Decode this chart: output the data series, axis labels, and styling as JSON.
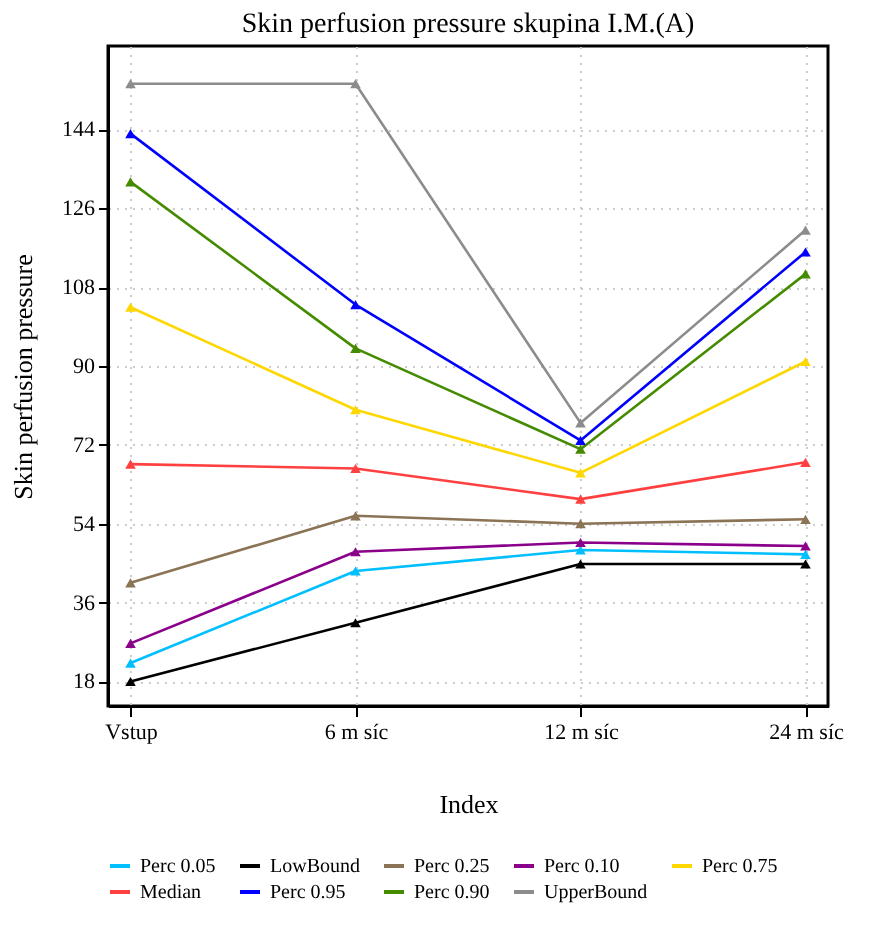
{
  "chart_data": {
    "type": "line",
    "title": "Skin perfusion pressure skupina I.M.(A)",
    "xlabel": "Index",
    "ylabel": "Skin perfusion pressure",
    "categories": [
      "Vstup",
      "6 m  síc",
      "12 m  síc",
      "24 m  síc"
    ],
    "ylim": [
      12.4,
      163
    ],
    "yticks": [
      18,
      36,
      54,
      72,
      90,
      108,
      126,
      144
    ],
    "grid": true,
    "legend": "bottom",
    "marker": "triangle",
    "line_style": "solid",
    "series": [
      {
        "name": "Perc 0.05",
        "color": "#00bfff",
        "values": [
          22.2,
          43.2,
          48,
          47
        ]
      },
      {
        "name": "LowBound",
        "color": "#000000",
        "values": [
          18,
          31.4,
          44.8,
          44.8
        ]
      },
      {
        "name": "Perc 0.25",
        "color": "#8b7355",
        "values": [
          40.5,
          55.8,
          54,
          55
        ]
      },
      {
        "name": "Perc 0.10",
        "color": "#8b008b",
        "values": [
          26.7,
          47.6,
          49.7,
          48.9
        ]
      },
      {
        "name": "Perc 0.75",
        "color": "#ffd700",
        "values": [
          103.4,
          80,
          65.6,
          91
        ]
      },
      {
        "name": "Median",
        "color": "#ff4040",
        "values": [
          67.6,
          66.6,
          59.6,
          68
        ]
      },
      {
        "name": "Perc 0.95",
        "color": "#0000ff",
        "values": [
          143,
          104,
          73,
          116
        ]
      },
      {
        "name": "Perc 0.90",
        "color": "#458b00",
        "values": [
          132,
          94,
          71,
          111
        ]
      },
      {
        "name": "UpperBound",
        "color": "#8c8c8c",
        "values": [
          154.4,
          154.4,
          77,
          121
        ]
      }
    ]
  }
}
